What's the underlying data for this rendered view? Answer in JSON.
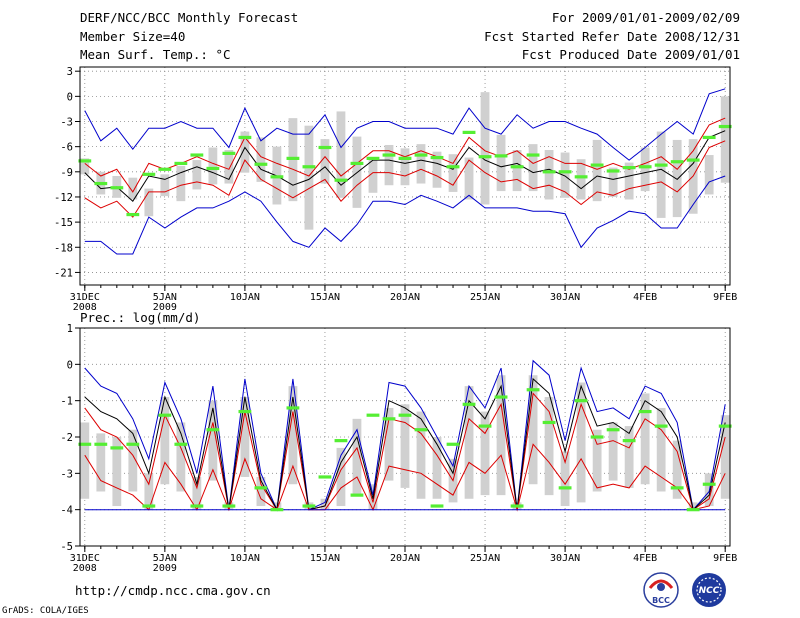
{
  "header": {
    "title": "DERF/NCC/BCC Monthly Forecast",
    "member": "Member Size=40",
    "variable": "Mean Surf. Temp.: °C",
    "period": "For 2009/01/01-2009/02/09",
    "refer": "Fcst Started Refer Date 2008/12/31",
    "produced": "Fcst Produced Date 2009/01/01"
  },
  "footer": {
    "url": "http://cmdp.ncc.cma.gov.cn",
    "grads": "GrADS: COLA/IGES",
    "logo_bcc": "BCC",
    "logo_ncc": "NCC"
  },
  "colors": {
    "envelope": "#0000cc",
    "spread": "#dd0000",
    "mean": "#000000",
    "box": "#d0d0d0",
    "obs": "#55ee33",
    "grid": "#888888"
  },
  "chart_data": [
    {
      "type": "line",
      "title": "Mean Surf. Temp.: °C",
      "x_labels": [
        {
          "i": 0,
          "label": "31DEC",
          "sub": "2008"
        },
        {
          "i": 5,
          "label": "5JAN",
          "sub": "2009"
        },
        {
          "i": 10,
          "label": "10JAN",
          "sub": ""
        },
        {
          "i": 15,
          "label": "15JAN",
          "sub": ""
        },
        {
          "i": 20,
          "label": "20JAN",
          "sub": ""
        },
        {
          "i": 25,
          "label": "25JAN",
          "sub": ""
        },
        {
          "i": 30,
          "label": "30JAN",
          "sub": ""
        },
        {
          "i": 35,
          "label": "4FEB",
          "sub": ""
        },
        {
          "i": 40,
          "label": "9FEB",
          "sub": ""
        }
      ],
      "yticks": [
        3,
        0,
        -3,
        -6,
        -9,
        -12,
        -15,
        -18,
        -21
      ],
      "ylim": [
        -22.5,
        3.5
      ],
      "series": [
        {
          "name": "max",
          "color": "blue",
          "values": [
            -1.7,
            -5.3,
            -3.8,
            -6.3,
            -3.8,
            -3.8,
            -3.0,
            -3.8,
            -3.8,
            -6.1,
            -1.4,
            -5.3,
            -3.8,
            -4.5,
            -4.5,
            -2.2,
            -6.1,
            -3.8,
            -3.0,
            -3.0,
            -3.8,
            -3.8,
            -3.8,
            -4.5,
            -1.4,
            -3.8,
            -4.5,
            -2.2,
            -3.8,
            -3.0,
            -3.0,
            -3.8,
            -4.5,
            -6.1,
            -7.6,
            -6.1,
            -4.5,
            -3.0,
            -4.5,
            0.3,
            0.9
          ]
        },
        {
          "name": "mean_plus_sd",
          "color": "red",
          "values": [
            -8.0,
            -9.5,
            -8.7,
            -11.4,
            -8.0,
            -8.7,
            -8.0,
            -7.2,
            -8.0,
            -8.7,
            -4.9,
            -7.2,
            -8.0,
            -8.7,
            -9.5,
            -7.2,
            -9.5,
            -8.0,
            -6.5,
            -6.5,
            -7.2,
            -6.5,
            -7.2,
            -8.0,
            -4.9,
            -6.5,
            -7.2,
            -6.5,
            -8.0,
            -7.2,
            -8.0,
            -8.0,
            -8.7,
            -8.0,
            -8.7,
            -8.0,
            -7.2,
            -8.7,
            -6.5,
            -3.4,
            -2.6
          ]
        },
        {
          "name": "mean",
          "color": "black",
          "values": [
            -9.1,
            -11.0,
            -10.8,
            -12.5,
            -9.5,
            -9.9,
            -9.1,
            -8.4,
            -9.1,
            -9.9,
            -6.1,
            -8.7,
            -9.5,
            -10.6,
            -9.9,
            -8.4,
            -10.6,
            -9.1,
            -7.6,
            -7.6,
            -8.0,
            -7.6,
            -8.0,
            -8.7,
            -6.1,
            -7.6,
            -8.4,
            -8.0,
            -9.1,
            -8.7,
            -9.5,
            -11.0,
            -9.5,
            -9.9,
            -9.5,
            -9.1,
            -8.7,
            -9.9,
            -8.0,
            -4.9,
            -4.1
          ]
        },
        {
          "name": "mean_minus_sd",
          "color": "red",
          "values": [
            -12.1,
            -13.3,
            -12.5,
            -14.4,
            -11.4,
            -11.4,
            -10.6,
            -10.2,
            -10.6,
            -11.8,
            -7.6,
            -9.9,
            -11.0,
            -12.1,
            -11.0,
            -9.9,
            -12.5,
            -10.6,
            -9.1,
            -9.1,
            -9.5,
            -8.7,
            -9.5,
            -10.6,
            -7.6,
            -9.1,
            -10.2,
            -9.9,
            -11.0,
            -10.6,
            -11.4,
            -12.9,
            -11.4,
            -11.8,
            -11.0,
            -10.6,
            -10.2,
            -11.4,
            -9.5,
            -6.1,
            -5.3
          ]
        },
        {
          "name": "min",
          "color": "blue",
          "values": [
            -17.3,
            -17.3,
            -18.8,
            -18.8,
            -14.4,
            -15.7,
            -14.4,
            -13.3,
            -13.3,
            -12.5,
            -11.4,
            -12.5,
            -15.0,
            -17.3,
            -18.0,
            -15.7,
            -17.3,
            -15.3,
            -12.5,
            -12.5,
            -12.9,
            -11.8,
            -12.5,
            -13.3,
            -11.8,
            -13.3,
            -13.3,
            -13.3,
            -13.7,
            -13.7,
            -14.0,
            -18.0,
            -15.7,
            -14.8,
            -13.7,
            -14.0,
            -15.7,
            -15.7,
            -12.9,
            -10.2,
            -9.5
          ]
        }
      ],
      "boxes": [
        [
          -7.4,
          -9.3
        ],
        [
          -9.0,
          -11.7
        ],
        [
          -9.5,
          -12.1
        ],
        [
          -9.7,
          -12.3
        ],
        [
          -11.0,
          -14.3
        ],
        [
          -9.3,
          -11.9
        ],
        [
          -8.3,
          -12.5
        ],
        [
          -7.6,
          -11.1
        ],
        [
          -6.1,
          -10.5
        ],
        [
          -6.4,
          -10.4
        ],
        [
          -4.2,
          -9.1
        ],
        [
          -4.9,
          -10.2
        ],
        [
          -6.0,
          -12.9
        ],
        [
          -2.6,
          -12.5
        ],
        [
          -3.5,
          -15.9
        ],
        [
          -5.1,
          -10.4
        ],
        [
          -1.8,
          -12.1
        ],
        [
          -4.8,
          -13.3
        ],
        [
          -7.4,
          -11.5
        ],
        [
          -5.8,
          -10.6
        ],
        [
          -6.2,
          -10.6
        ],
        [
          -5.7,
          -10.4
        ],
        [
          -6.6,
          -10.9
        ],
        [
          -6.9,
          -11.4
        ],
        [
          -7.3,
          -12.3
        ],
        [
          0.5,
          -12.9
        ],
        [
          -4.6,
          -11.3
        ],
        [
          -6.4,
          -11.3
        ],
        [
          -5.7,
          -11.3
        ],
        [
          -6.4,
          -12.3
        ],
        [
          -6.7,
          -12.1
        ],
        [
          -7.5,
          -12.3
        ],
        [
          -5.2,
          -12.5
        ],
        [
          -8.5,
          -12.0
        ],
        [
          -7.9,
          -12.3
        ],
        [
          -6.1,
          -11.3
        ],
        [
          -4.2,
          -14.5
        ],
        [
          -5.2,
          -14.4
        ],
        [
          -5.1,
          -14.0
        ],
        [
          -7.0,
          -11.7
        ],
        [
          0.0,
          -10.3
        ]
      ],
      "obs": [
        -7.7,
        -10.4,
        -10.9,
        -14.1,
        -9.3,
        -8.7,
        -8.0,
        -7.0,
        -8.6,
        -6.8,
        -4.9,
        -8.1,
        -9.6,
        -7.4,
        -8.4,
        -6.1,
        -10.0,
        -8.0,
        -7.4,
        -7.0,
        -7.4,
        -7.0,
        -7.3,
        -8.4,
        -4.3,
        -7.2,
        -7.1,
        -8.4,
        -7.0,
        -9.0,
        -9.0,
        -9.6,
        -8.2,
        -8.9,
        -8.5,
        -8.4,
        -8.2,
        -7.8,
        -7.6,
        -4.9,
        -3.6
      ]
    },
    {
      "type": "line",
      "title": "Prec.: log(mm/d)",
      "x_labels": [
        {
          "i": 0,
          "label": "31DEC",
          "sub": "2008"
        },
        {
          "i": 5,
          "label": "5JAN",
          "sub": "2009"
        },
        {
          "i": 10,
          "label": "10JAN",
          "sub": ""
        },
        {
          "i": 15,
          "label": "15JAN",
          "sub": ""
        },
        {
          "i": 20,
          "label": "20JAN",
          "sub": ""
        },
        {
          "i": 25,
          "label": "25JAN",
          "sub": ""
        },
        {
          "i": 30,
          "label": "30JAN",
          "sub": ""
        },
        {
          "i": 35,
          "label": "4FEB",
          "sub": ""
        },
        {
          "i": 40,
          "label": "9FEB",
          "sub": ""
        }
      ],
      "yticks": [
        1,
        0,
        -1,
        -2,
        -3,
        -4,
        -5
      ],
      "ylim": [
        -5,
        1
      ],
      "series": [
        {
          "name": "max",
          "color": "blue",
          "values": [
            -0.1,
            -0.6,
            -0.8,
            -1.5,
            -2.6,
            -0.5,
            -1.5,
            -3.0,
            -0.6,
            -4.0,
            -0.4,
            -3.0,
            -4.0,
            -0.4,
            -4.0,
            -3.8,
            -2.5,
            -1.8,
            -3.6,
            -0.5,
            -0.6,
            -1.2,
            -2.0,
            -2.8,
            -0.6,
            -1.2,
            -0.1,
            -4.0,
            0.1,
            -0.3,
            -2.1,
            -0.1,
            -1.3,
            -1.2,
            -1.5,
            -0.6,
            -0.8,
            -1.6,
            -4.0,
            -3.5,
            -1.1
          ]
        },
        {
          "name": "mean_plus_sd",
          "color": "red",
          "values": [
            -1.2,
            -1.8,
            -2.0,
            -2.5,
            -3.3,
            -1.4,
            -2.3,
            -3.4,
            -1.6,
            -4.0,
            -1.3,
            -3.3,
            -4.0,
            -1.3,
            -4.0,
            -3.9,
            -2.9,
            -2.3,
            -3.8,
            -1.5,
            -1.6,
            -1.9,
            -2.5,
            -3.2,
            -1.5,
            -1.9,
            -1.1,
            -4.0,
            -0.8,
            -1.3,
            -2.7,
            -1.1,
            -2.2,
            -2.1,
            -2.3,
            -1.5,
            -1.8,
            -2.4,
            -4.0,
            -3.7,
            -2.0
          ]
        },
        {
          "name": "mean",
          "color": "black",
          "values": [
            -0.9,
            -1.3,
            -1.5,
            -1.9,
            -3.0,
            -0.9,
            -1.9,
            -3.3,
            -1.2,
            -4.0,
            -0.9,
            -3.2,
            -4.0,
            -0.9,
            -4.0,
            -3.9,
            -2.7,
            -2.0,
            -3.7,
            -1.0,
            -1.2,
            -1.5,
            -2.2,
            -3.0,
            -1.0,
            -1.5,
            -0.6,
            -4.0,
            -0.4,
            -0.8,
            -2.4,
            -0.6,
            -1.7,
            -1.6,
            -1.9,
            -1.0,
            -1.3,
            -2.0,
            -4.0,
            -3.6,
            -1.6
          ]
        },
        {
          "name": "mean_minus_sd",
          "color": "red",
          "values": [
            -2.5,
            -3.2,
            -3.4,
            -3.6,
            -4.0,
            -2.7,
            -3.3,
            -4.0,
            -2.9,
            -4.0,
            -2.6,
            -3.7,
            -4.0,
            -2.8,
            -4.0,
            -4.0,
            -3.4,
            -3.1,
            -4.0,
            -2.8,
            -2.9,
            -3.0,
            -3.3,
            -3.6,
            -2.7,
            -3.0,
            -2.5,
            -4.0,
            -2.2,
            -2.7,
            -3.3,
            -2.6,
            -3.4,
            -3.3,
            -3.4,
            -2.8,
            -3.1,
            -3.4,
            -4.0,
            -3.9,
            -3.0
          ]
        },
        {
          "name": "min",
          "color": "blue",
          "values": [
            -4.0,
            -4.0,
            -4.0,
            -4.0,
            -4.0,
            -4.0,
            -4.0,
            -4.0,
            -4.0,
            -4.0,
            -4.0,
            -4.0,
            -4.0,
            -4.0,
            -4.0,
            -4.0,
            -4.0,
            -4.0,
            -4.0,
            -4.0,
            -4.0,
            -4.0,
            -4.0,
            -4.0,
            -4.0,
            -4.0,
            -4.0,
            -4.0,
            -4.0,
            -4.0,
            -4.0,
            -4.0,
            -4.0,
            -4.0,
            -4.0,
            -4.0,
            -4.0,
            -4.0,
            -4.0,
            -4.0,
            -4.0
          ]
        }
      ],
      "boxes": [
        [
          -1.6,
          -3.7
        ],
        [
          -1.9,
          -3.5
        ],
        [
          -2.0,
          -3.9
        ],
        [
          -1.8,
          -3.5
        ],
        [
          -3.0,
          -4.0
        ],
        [
          -0.9,
          -3.3
        ],
        [
          -1.6,
          -3.5
        ],
        [
          -3.1,
          -4.0
        ],
        [
          -1.0,
          -3.2
        ],
        [
          -3.8,
          -4.0
        ],
        [
          -0.9,
          -3.1
        ],
        [
          -3.1,
          -3.9
        ],
        [
          -3.8,
          -4.0
        ],
        [
          -0.6,
          -3.3
        ],
        [
          -3.8,
          -4.0
        ],
        [
          -3.7,
          -4.0
        ],
        [
          -2.3,
          -3.9
        ],
        [
          -1.5,
          -3.6
        ],
        [
          -3.3,
          -4.0
        ],
        [
          -1.2,
          -3.2
        ],
        [
          -1.1,
          -3.4
        ],
        [
          -1.3,
          -3.7
        ],
        [
          -2.0,
          -3.7
        ],
        [
          -2.6,
          -3.8
        ],
        [
          -0.6,
          -3.7
        ],
        [
          -1.3,
          -3.6
        ],
        [
          -0.3,
          -3.6
        ],
        [
          -3.8,
          -4.0
        ],
        [
          -0.3,
          -3.3
        ],
        [
          -0.9,
          -3.6
        ],
        [
          -2.4,
          -3.9
        ],
        [
          -0.5,
          -3.8
        ],
        [
          -1.8,
          -3.5
        ],
        [
          -1.6,
          -3.2
        ],
        [
          -1.7,
          -3.4
        ],
        [
          -0.8,
          -3.3
        ],
        [
          -1.2,
          -3.5
        ],
        [
          -2.1,
          -3.7
        ],
        [
          -3.8,
          -4.0
        ],
        [
          -3.0,
          -3.9
        ],
        [
          -1.4,
          -3.7
        ]
      ],
      "obs": [
        -2.2,
        -2.2,
        -2.3,
        -2.2,
        -3.9,
        -1.4,
        -2.2,
        -3.9,
        -1.8,
        -3.9,
        -1.3,
        -3.4,
        -4.0,
        -1.2,
        -3.9,
        -3.1,
        -2.1,
        -3.6,
        -1.4,
        -1.5,
        -1.4,
        -1.8,
        -3.9,
        -2.2,
        -1.1,
        -1.7,
        -0.9,
        -3.9,
        -0.7,
        -1.6,
        -3.4,
        -1.0,
        -2.0,
        -1.8,
        -2.1,
        -1.3,
        -1.7,
        -3.4,
        -4.0,
        -3.3,
        -1.7
      ]
    }
  ]
}
